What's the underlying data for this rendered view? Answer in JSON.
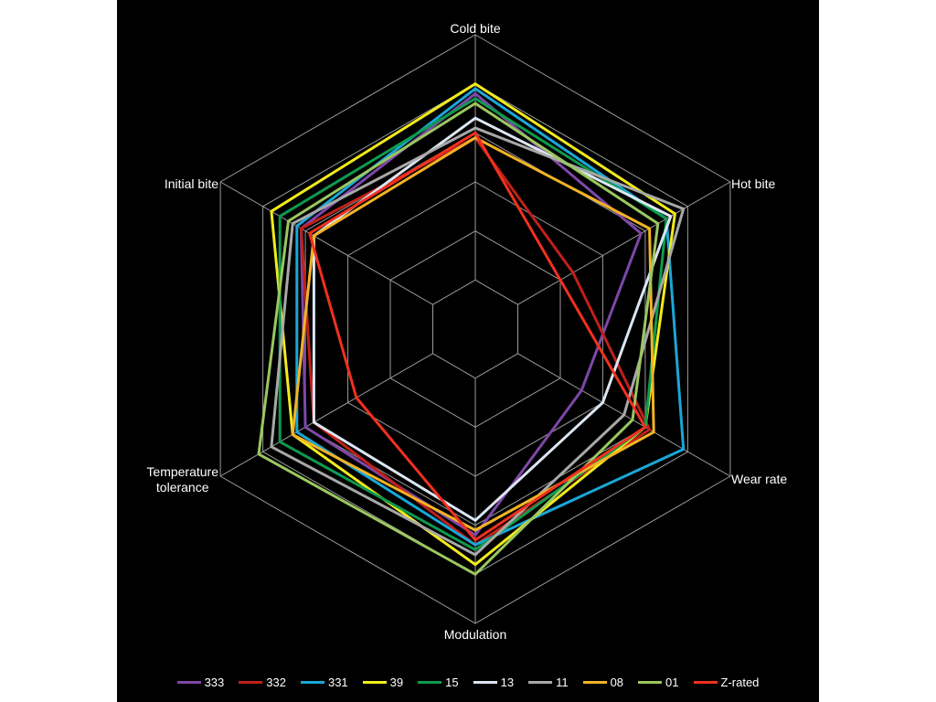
{
  "chart_data": {
    "type": "radar",
    "axes": [
      "Cold bite",
      "Hot bite",
      "Wear rate",
      "Modulation",
      "Temperature tolerance",
      "Initial bite"
    ],
    "axis_display": [
      [
        "Cold bite"
      ],
      [
        "Hot bite"
      ],
      [
        "Wear rate"
      ],
      [
        "Modulation"
      ],
      [
        "Temperature",
        "tolerance"
      ],
      [
        "Initial bite"
      ]
    ],
    "rlim": [
      0,
      6
    ],
    "grid_rings": 5,
    "legend_position": "bottom",
    "series": [
      {
        "name": "333",
        "color": "#7e47a8",
        "values": [
          4.8,
          3.9,
          2.5,
          4.2,
          4.0,
          4.1
        ]
      },
      {
        "name": "332",
        "color": "#c0201b",
        "values": [
          3.9,
          2.3,
          4.1,
          4.4,
          3.8,
          4.1
        ]
      },
      {
        "name": "331",
        "color": "#1aa7d8",
        "values": [
          4.9,
          4.5,
          4.9,
          4.4,
          4.2,
          4.2
        ]
      },
      {
        "name": "39",
        "color": "#f1ea1d",
        "values": [
          5.0,
          4.7,
          4.0,
          4.8,
          4.3,
          4.8
        ]
      },
      {
        "name": "15",
        "color": "#0e9a4e",
        "values": [
          4.7,
          4.5,
          4.0,
          4.5,
          4.6,
          4.6
        ]
      },
      {
        "name": "13",
        "color": "#dbe6f2",
        "values": [
          4.3,
          4.6,
          3.0,
          3.9,
          3.8,
          3.8
        ]
      },
      {
        "name": "11",
        "color": "#a8a8a8",
        "values": [
          4.1,
          4.9,
          3.5,
          4.6,
          4.8,
          4.3
        ]
      },
      {
        "name": "08",
        "color": "#f2b325",
        "values": [
          3.9,
          4.1,
          4.2,
          4.1,
          4.3,
          3.8
        ]
      },
      {
        "name": "01",
        "color": "#9bc75f",
        "values": [
          4.6,
          4.3,
          3.7,
          5.0,
          5.1,
          4.4
        ]
      },
      {
        "name": "Z-rated",
        "color": "#f0311e",
        "values": [
          4.0,
          2.0,
          4.0,
          4.3,
          2.8,
          3.9
        ]
      }
    ]
  },
  "grid_color": "#9a9a9a",
  "background_color": "#000000"
}
